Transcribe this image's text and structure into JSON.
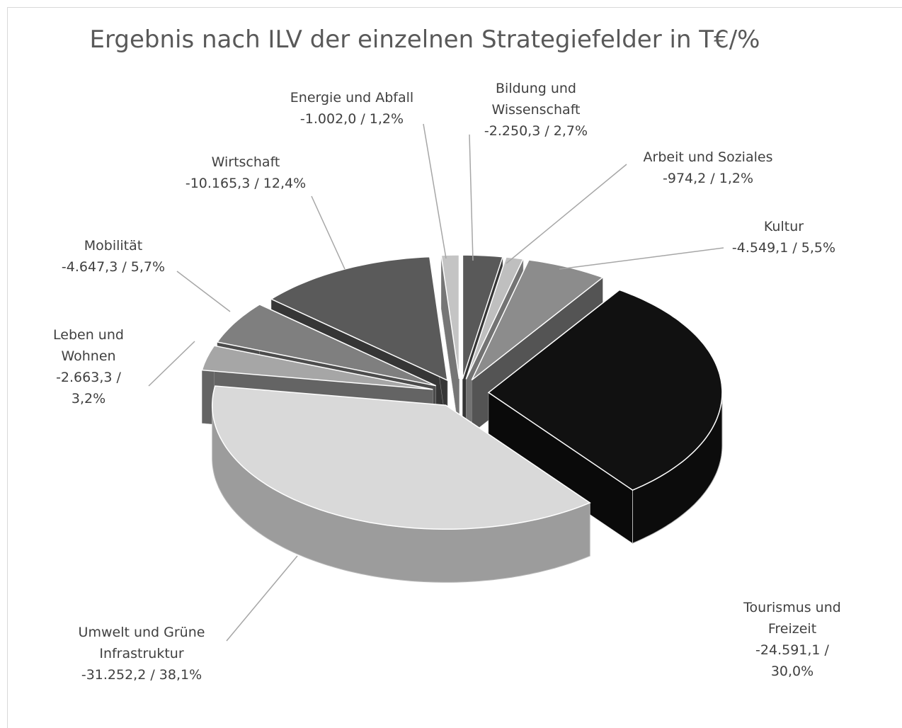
{
  "chart_data": {
    "type": "pie3d",
    "title": "Ergebnis nach ILV der einzelnen Strategiefelder in T€/%",
    "categories": [
      "Bildung und Wissenschaft",
      "Arbeit und Soziales",
      "Kultur",
      "Tourismus und Freizeit",
      "Umwelt und Grüne Infrastruktur",
      "Leben und Wohnen",
      "Mobilität",
      "Wirtschaft",
      "Energie und Abfall"
    ],
    "values": [
      -2250.3,
      -974.2,
      -4549.1,
      -24591.1,
      -31252.2,
      -2663.3,
      -4647.3,
      -10165.3,
      -1002.0
    ],
    "value_labels": [
      "-2.250,3 / 2,7%",
      "-974,2 / 1,2%",
      "-4.549,1 / 5,5%",
      "-24.591,1 / 30,0%",
      "-31.252,2 / 38,1%",
      "-2.663,3 / 3,2%",
      "-4.647,3 / 5,7%",
      "-10.165,3 / 12,4%",
      "-1.002,0 / 1,2%"
    ],
    "colors": [
      "#595959",
      "#bfbfbf",
      "#8c8c8c",
      "#111111",
      "#d9d9d9",
      "#a6a6a6",
      "#7f7f7f",
      "#5a5a5a",
      "#c4c4c4"
    ]
  }
}
